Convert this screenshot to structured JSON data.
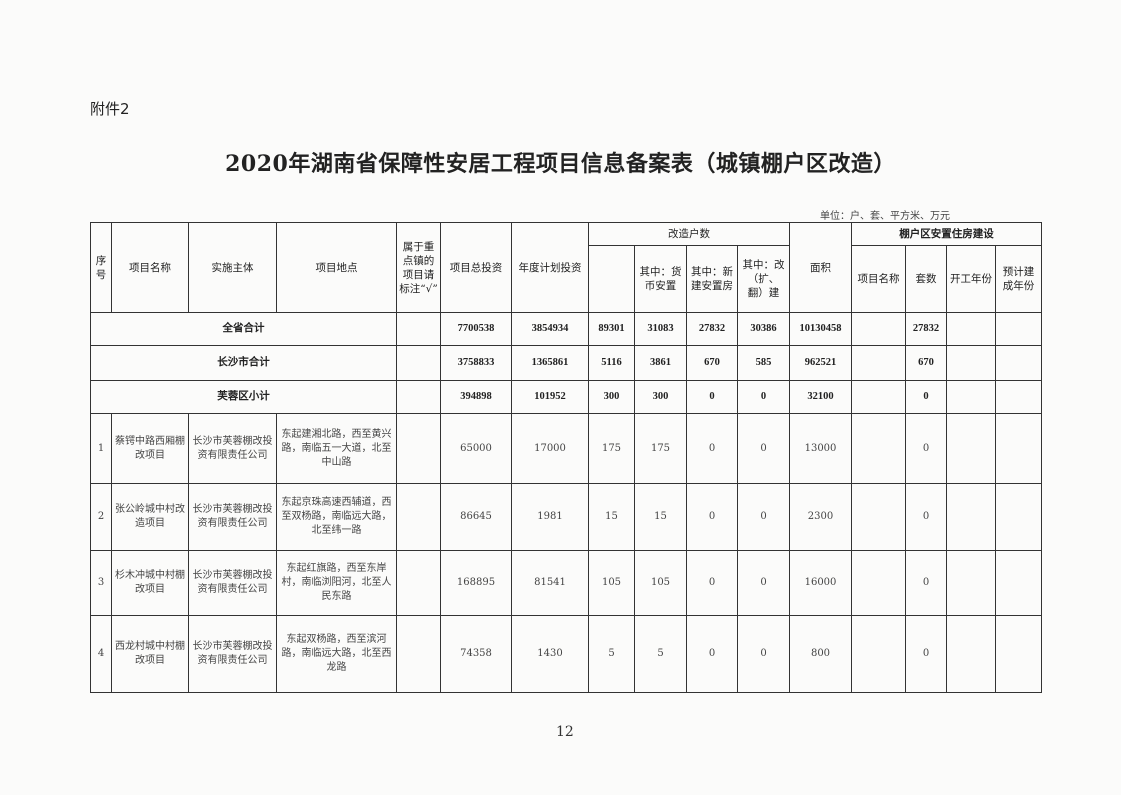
{
  "attachment_label": "附件2",
  "title": "2020年湖南省保障性安居工程项目信息备案表（城镇棚户区改造）",
  "unit_note": "单位：户、套、平方米、万元",
  "headers": {
    "seq": "序号",
    "project_name": "项目名称",
    "implementer": "实施主体",
    "location": "项目地点",
    "key_town": "属于重点镇的项目请标注“√”",
    "total_investment": "项目总投资",
    "annual_investment": "年度计划投资",
    "households_group": "改造户数",
    "households_total": "",
    "monetary": "其中：货币安置",
    "new_build": "其中：新建安置房",
    "renovation": "其中：改（扩、翻）建",
    "area": "面积",
    "housing_group": "棚户区安置住房建设",
    "housing_name": "项目名称",
    "housing_units": "套数",
    "start_year": "开工年份",
    "finish_year": "预计建成年份"
  },
  "summary_rows": [
    {
      "label": "全省合计",
      "total": "7700538",
      "annual": "3854934",
      "households": "89301",
      "monetary": "31083",
      "new_build": "27832",
      "renovation": "30386",
      "area": "10130458",
      "units": "27832"
    },
    {
      "label": "长沙市合计",
      "total": "3758833",
      "annual": "1365861",
      "households": "5116",
      "monetary": "3861",
      "new_build": "670",
      "renovation": "585",
      "area": "962521",
      "units": "670"
    },
    {
      "label": "芙蓉区小计",
      "total": "394898",
      "annual": "101952",
      "households": "300",
      "monetary": "300",
      "new_build": "0",
      "renovation": "0",
      "area": "32100",
      "units": "0"
    }
  ],
  "rows": [
    {
      "seq": "1",
      "name": "蔡锷中路西厢棚改项目",
      "implementer": "长沙市芙蓉棚改投资有限责任公司",
      "location": "东起建湘北路，西至黄兴路，南临五一大道，北至中山路",
      "total": "65000",
      "annual": "17000",
      "households": "175",
      "monetary": "175",
      "new_build": "0",
      "renovation": "0",
      "area": "13000",
      "units": "0"
    },
    {
      "seq": "2",
      "name": "张公岭城中村改造项目",
      "implementer": "长沙市芙蓉棚改投资有限责任公司",
      "location": "东起京珠高速西辅道，西至双杨路，南临远大路，北至纬一路",
      "total": "86645",
      "annual": "1981",
      "households": "15",
      "monetary": "15",
      "new_build": "0",
      "renovation": "0",
      "area": "2300",
      "units": "0"
    },
    {
      "seq": "3",
      "name": "杉木冲城中村棚改项目",
      "implementer": "长沙市芙蓉棚改投资有限责任公司",
      "location": "东起红旗路，西至东岸村，南临浏阳河，北至人民东路",
      "total": "168895",
      "annual": "81541",
      "households": "105",
      "monetary": "105",
      "new_build": "0",
      "renovation": "0",
      "area": "16000",
      "units": "0"
    },
    {
      "seq": "4",
      "name": "西龙村城中村棚改项目",
      "implementer": "长沙市芙蓉棚改投资有限责任公司",
      "location": "东起双杨路，西至滨河路，南临远大路，北至西龙路",
      "total": "74358",
      "annual": "1430",
      "households": "5",
      "monetary": "5",
      "new_build": "0",
      "renovation": "0",
      "area": "800",
      "units": "0"
    }
  ],
  "page_number": "12"
}
